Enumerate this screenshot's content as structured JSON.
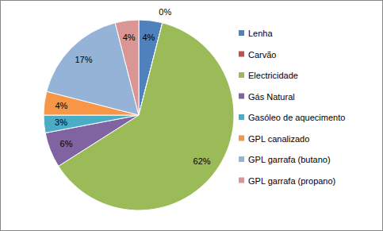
{
  "chart_data": {
    "type": "pie",
    "categories": [
      "Lenha",
      "Carvão",
      "Electricidade",
      "Gás Natural",
      "Gasóleo de aquecimento",
      "GPL canalizado",
      "GPL garrafa (butano)",
      "GPL garrafa (propano)"
    ],
    "values": [
      4,
      0,
      62,
      6,
      3,
      4,
      17,
      4
    ],
    "value_labels": [
      "4%",
      "0%",
      "62%",
      "6%",
      "3%",
      "4%",
      "17%",
      "4%"
    ],
    "colors": [
      "#4f81bd",
      "#c0504d",
      "#9bbb59",
      "#8064a2",
      "#4bacc6",
      "#f79646",
      "#95b3d7",
      "#d99694"
    ],
    "data_labels": true,
    "legend": "right"
  }
}
